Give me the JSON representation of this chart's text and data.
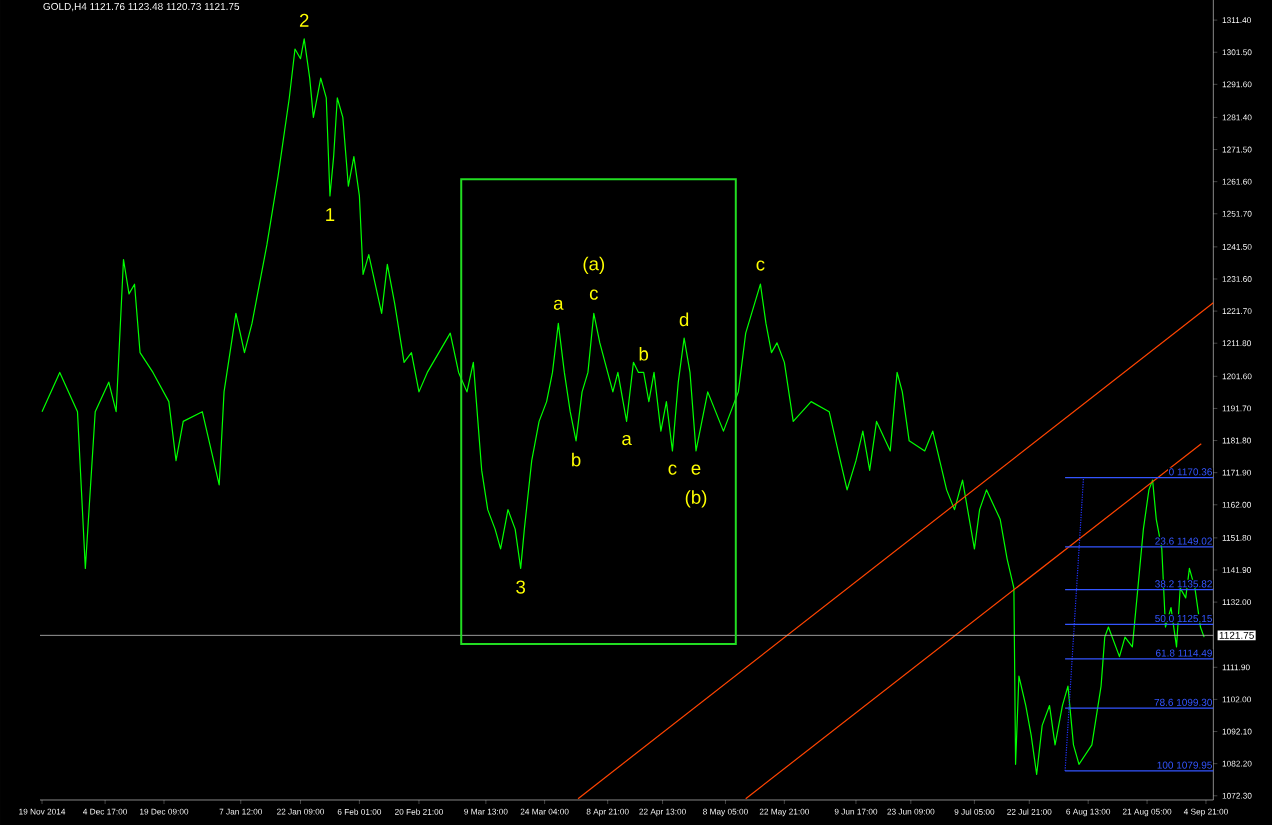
{
  "chart_data": {
    "type": "line",
    "title": "GOLD,H4  1121.76 1123.48 1120.73 1121.75",
    "xlim": [
      "2014-11-18T12:00",
      "2015-09-06T17:00"
    ],
    "ylim": [
      1071.0,
      1317.6
    ],
    "xticks": [
      {
        "value": "2014-11-19T00:00",
        "label": "19 Nov 2014"
      },
      {
        "value": "2014-12-04T17:00",
        "label": "4 Dec 17:00"
      },
      {
        "value": "2014-12-19T09:00",
        "label": "19 Dec 09:00"
      },
      {
        "value": "2015-01-07T12:00",
        "label": "7 Jan 12:00"
      },
      {
        "value": "2015-01-22T09:00",
        "label": "22 Jan 09:00"
      },
      {
        "value": "2015-02-06T01:00",
        "label": "6 Feb 01:00"
      },
      {
        "value": "2015-02-20T21:00",
        "label": "20 Feb 21:00"
      },
      {
        "value": "2015-03-09T13:00",
        "label": "9 Mar 13:00"
      },
      {
        "value": "2015-03-24T04:00",
        "label": "24 Mar 04:00"
      },
      {
        "value": "2015-04-08T21:00",
        "label": "8 Apr 21:00"
      },
      {
        "value": "2015-04-22T13:00",
        "label": "22 Apr 13:00"
      },
      {
        "value": "2015-05-08T05:00",
        "label": "8 May 05:00"
      },
      {
        "value": "2015-05-22T21:00",
        "label": "22 May 21:00"
      },
      {
        "value": "2015-06-09T17:00",
        "label": "9 Jun 17:00"
      },
      {
        "value": "2015-06-23T09:00",
        "label": "23 Jun 09:00"
      },
      {
        "value": "2015-07-09T05:00",
        "label": "9 Jul 05:00"
      },
      {
        "value": "2015-07-22T21:00",
        "label": "22 Jul 21:00"
      },
      {
        "value": "2015-08-06T13:00",
        "label": "6 Aug 13:00"
      },
      {
        "value": "2015-08-21T05:00",
        "label": "21 Aug 05:00"
      },
      {
        "value": "2015-09-04T21:00",
        "label": "4 Sep 21:00"
      }
    ],
    "yticks": [
      {
        "value": 1311.4,
        "label": "1311.40"
      },
      {
        "value": 1301.5,
        "label": "1301.50"
      },
      {
        "value": 1291.6,
        "label": "1291.60"
      },
      {
        "value": 1281.4,
        "label": "1281.40"
      },
      {
        "value": 1271.5,
        "label": "1271.50"
      },
      {
        "value": 1261.6,
        "label": "1261.60"
      },
      {
        "value": 1251.7,
        "label": "1251.70"
      },
      {
        "value": 1241.5,
        "label": "1241.50"
      },
      {
        "value": 1231.6,
        "label": "1231.60"
      },
      {
        "value": 1221.7,
        "label": "1221.70"
      },
      {
        "value": 1211.8,
        "label": "1211.80"
      },
      {
        "value": 1201.6,
        "label": "1201.60"
      },
      {
        "value": 1191.7,
        "label": "1191.70"
      },
      {
        "value": 1181.8,
        "label": "1181.80"
      },
      {
        "value": 1171.9,
        "label": "1171.90"
      },
      {
        "value": 1162.0,
        "label": "1162.00"
      },
      {
        "value": 1151.8,
        "label": "1151.80"
      },
      {
        "value": 1141.9,
        "label": "1141.90"
      },
      {
        "value": 1132.0,
        "label": "1132.00"
      },
      {
        "value": 1111.9,
        "label": "1111.90"
      },
      {
        "value": 1102.0,
        "label": "1102.00"
      },
      {
        "value": 1092.1,
        "label": "1092.10"
      },
      {
        "value": 1082.2,
        "label": "1082.20"
      },
      {
        "value": 1072.3,
        "label": "1072.30"
      }
    ],
    "ref_lines": [
      {
        "axis": "y",
        "value": 1121.75,
        "label": "1121.75",
        "color": "#c0c0c0"
      }
    ],
    "series": [
      {
        "color": "#00ff00",
        "x": [
          "2014-11-19T00:00",
          "2014-11-23T10:00",
          "2014-11-27T20:00",
          "2014-11-29T19:00",
          "2014-12-02T06:00",
          "2014-12-05T15:00",
          "2014-12-07T11:00",
          "2014-12-09T07:00",
          "2014-12-10T16:00",
          "2014-12-12T01:00",
          "2014-12-13T10:00",
          "2014-12-16T15:00",
          "2014-12-20T14:00",
          "2014-12-22T09:00",
          "2014-12-24T04:00",
          "2014-12-28T22:00",
          "2015-01-02T03:00",
          "2015-01-03T08:00",
          "2015-01-06T07:00",
          "2015-01-08T10:00",
          "2015-01-10T07:00",
          "2015-01-14T00:00",
          "2015-01-16T19:00",
          "2015-01-19T14:00",
          "2015-01-21T00:00",
          "2015-01-22T09:00",
          "2015-01-23T07:00",
          "2015-01-24T16:00",
          "2015-01-25T14:00",
          "2015-01-27T10:00",
          "2015-01-28T19:00",
          "2015-01-29T17:00",
          "2015-01-30T15:00",
          "2015-01-31T13:00",
          "2015-02-01T22:00",
          "2015-02-03T07:00",
          "2015-02-04T16:00",
          "2015-02-06T01:00",
          "2015-02-06T23:00",
          "2015-02-08T09:00",
          "2015-02-11T14:00",
          "2015-02-13T00:00",
          "2015-02-14T20:00",
          "2015-02-17T04:00",
          "2015-02-19T00:00",
          "2015-02-20T21:00",
          "2015-02-22T23:00",
          "2015-02-28T16:00",
          "2015-03-02T18:00",
          "2015-03-04T20:00",
          "2015-03-06T10:00",
          "2015-03-08T12:00",
          "2015-03-10T00:00",
          "2015-03-11T20:00",
          "2015-03-13T05:00",
          "2015-03-15T01:00",
          "2015-03-16T20:00",
          "2015-03-18T05:00",
          "2015-03-19T03:00",
          "2015-03-20T23:00",
          "2015-03-22T19:00",
          "2015-03-24T16:00",
          "2015-03-26T03:00",
          "2015-03-27T14:00",
          "2015-03-29T02:00",
          "2015-03-30T13:00",
          "2015-04-01T00:00",
          "2015-04-02T12:00",
          "2015-04-03T23:00",
          "2015-04-05T10:00",
          "2015-04-06T22:00",
          "2015-04-08T21:00",
          "2015-04-10T04:00",
          "2015-04-11T10:00",
          "2015-04-12T17:00",
          "2015-04-13T14:00",
          "2015-04-15T07:00",
          "2015-04-16T13:00",
          "2015-04-17T20:00",
          "2015-04-19T03:00",
          "2015-04-20T10:00",
          "2015-04-22T03:00",
          "2015-04-23T12:00",
          "2015-04-25T00:00",
          "2015-04-26T11:00",
          "2015-04-27T22:00",
          "2015-04-29T09:00",
          "2015-04-30T21:00",
          "2015-05-02T08:00",
          "2015-05-03T19:00",
          "2015-05-07T17:00",
          "2015-05-11T10:00",
          "2015-05-13T06:00",
          "2015-05-16T22:00",
          "2015-05-18T07:00",
          "2015-05-19T16:00",
          "2015-05-21T01:00",
          "2015-05-22T21:00",
          "2015-05-25T02:00",
          "2015-05-29T13:00",
          "2015-06-03T01:00",
          "2015-06-05T06:00",
          "2015-06-07T12:00",
          "2015-06-09T17:00",
          "2015-06-11T10:00",
          "2015-06-13T03:00",
          "2015-06-14T20:00",
          "2015-06-18T06:00",
          "2015-06-19T23:00",
          "2015-06-21T06:00",
          "2015-06-22T23:00",
          "2015-06-26T20:00",
          "2015-06-28T20:00",
          "2015-07-02T07:00",
          "2015-07-04T06:00",
          "2015-07-06T06:00",
          "2015-07-09T05:00",
          "2015-07-10T12:00",
          "2015-07-12T05:00",
          "2015-07-15T15:00",
          "2015-07-17T08:00",
          "2015-07-19T01:00",
          "2015-07-19T11:00",
          "2015-07-20T07:00",
          "2015-07-22T00:00",
          "2015-07-23T08:00",
          "2015-07-24T17:00",
          "2015-07-26T02:00",
          "2015-07-27T22:00",
          "2015-07-29T07:00",
          "2015-07-31T03:00",
          "2015-08-01T12:00",
          "2015-08-02T21:00",
          "2015-08-04T06:00",
          "2015-08-07T11:00",
          "2015-08-09T18:00",
          "2015-08-10T16:00",
          "2015-08-11T14:00",
          "2015-08-14T08:00",
          "2015-08-15T17:00",
          "2015-08-17T13:00",
          "2015-08-20T07:00",
          "2015-08-21T16:00",
          "2015-08-22T14:00",
          "2015-08-23T12:00",
          "2015-08-24T21:00",
          "2015-08-25T19:00",
          "2015-08-27T04:00",
          "2015-08-28T13:00",
          "2015-08-29T11:00",
          "2015-08-30T20:00",
          "2015-08-31T18:00",
          "2015-09-02T03:00",
          "2015-09-03T12:00",
          "2015-09-04T10:00"
        ],
        "values": [
          1190.7,
          1202.8,
          1190.7,
          1142.4,
          1190.7,
          1199.8,
          1190.7,
          1237.6,
          1227.0,
          1230.0,
          1208.9,
          1202.8,
          1193.8,
          1175.6,
          1187.7,
          1190.7,
          1168.1,
          1196.8,
          1221.0,
          1208.9,
          1217.9,
          1242.1,
          1263.3,
          1287.4,
          1302.5,
          1299.5,
          1305.6,
          1293.5,
          1281.4,
          1293.5,
          1287.4,
          1257.2,
          1269.3,
          1287.4,
          1281.4,
          1260.2,
          1269.3,
          1257.2,
          1233.0,
          1239.1,
          1221.0,
          1236.1,
          1224.0,
          1205.9,
          1208.9,
          1196.8,
          1202.8,
          1214.9,
          1202.8,
          1196.8,
          1205.9,
          1172.6,
          1160.5,
          1154.5,
          1148.4,
          1160.5,
          1154.5,
          1142.4,
          1154.5,
          1175.6,
          1187.7,
          1193.8,
          1202.8,
          1217.9,
          1202.8,
          1190.7,
          1181.7,
          1196.8,
          1202.8,
          1221.0,
          1211.9,
          1202.8,
          1196.8,
          1202.8,
          1193.8,
          1187.7,
          1205.9,
          1202.8,
          1202.8,
          1193.8,
          1202.8,
          1184.7,
          1193.8,
          1178.6,
          1199.8,
          1213.4,
          1202.8,
          1178.6,
          1187.7,
          1196.8,
          1184.7,
          1196.8,
          1214.9,
          1230.0,
          1217.9,
          1208.9,
          1211.9,
          1205.9,
          1187.7,
          1193.8,
          1190.7,
          1178.6,
          1166.6,
          1175.6,
          1184.7,
          1172.6,
          1187.7,
          1178.6,
          1202.8,
          1196.8,
          1181.7,
          1178.6,
          1184.7,
          1166.6,
          1160.5,
          1169.6,
          1148.4,
          1160.5,
          1166.6,
          1157.5,
          1145.4,
          1136.3,
          1082.0,
          1109.2,
          1100.1,
          1091.0,
          1078.9,
          1094.0,
          1100.1,
          1088.0,
          1100.1,
          1106.1,
          1088.0,
          1082.0,
          1088.0,
          1106.1,
          1121.2,
          1124.3,
          1115.2,
          1121.2,
          1118.2,
          1154.5,
          1166.6,
          1169.6,
          1157.5,
          1148.4,
          1124.3,
          1130.3,
          1118.2,
          1136.3,
          1133.3,
          1142.4,
          1136.3,
          1124.3,
          1121.2
        ]
      },
      {
        "color": "#ff4400",
        "x": [
          "2015-04-01T12:00",
          "2015-09-06T17:00"
        ],
        "values": [
          1071.4,
          1224.3
        ]
      },
      {
        "color": "#ff4400",
        "x": [
          "2015-05-13T06:00",
          "2015-09-03T17:00"
        ],
        "values": [
          1071.4,
          1180.8
        ]
      },
      {
        "color": "#2233ff",
        "line_style": "dotted",
        "x": [
          "2015-07-31T19:00",
          "2015-08-05T09:00"
        ],
        "values": [
          1079.95,
          1170.36
        ]
      },
      {
        "color": "#3355ff",
        "name": "0 1170.36",
        "x": [
          "2015-07-31T19:00",
          "2015-09-06T17:00"
        ],
        "values": [
          1170.36,
          1170.36
        ]
      },
      {
        "color": "#3355ff",
        "name": "23.6 1149.02",
        "x": [
          "2015-07-31T19:00",
          "2015-09-06T17:00"
        ],
        "values": [
          1149.02,
          1149.02
        ]
      },
      {
        "color": "#3355ff",
        "name": "38.2 1135.82",
        "x": [
          "2015-07-31T19:00",
          "2015-09-06T17:00"
        ],
        "values": [
          1135.82,
          1135.82
        ]
      },
      {
        "color": "#3355ff",
        "name": "50.0 1125.15",
        "x": [
          "2015-07-31T19:00",
          "2015-09-06T17:00"
        ],
        "values": [
          1125.15,
          1125.15
        ]
      },
      {
        "color": "#3355ff",
        "name": "61.8 1114.49",
        "x": [
          "2015-07-31T19:00",
          "2015-09-06T17:00"
        ],
        "values": [
          1114.49,
          1114.49
        ]
      },
      {
        "color": "#3355ff",
        "name": "78.6 1099.30",
        "x": [
          "2015-07-31T19:00",
          "2015-09-06T17:00"
        ],
        "values": [
          1099.3,
          1099.3
        ]
      },
      {
        "color": "#3355ff",
        "name": "100 1079.95",
        "x": [
          "2015-07-31T19:00",
          "2015-09-06T17:00"
        ],
        "values": [
          1079.95,
          1079.95
        ]
      }
    ],
    "annotations": [
      {
        "text": "2",
        "x": "2015-01-23T07:00",
        "y": 1305.6
      },
      {
        "text": "1",
        "x": "2015-01-29T17:00",
        "y": 1257.2
      },
      {
        "text": "3",
        "x": "2015-03-18T05:00",
        "y": 1142.4
      },
      {
        "text": "a",
        "x": "2015-03-27T14:00",
        "y": 1217.9
      },
      {
        "text": "c",
        "x": "2015-04-05T10:00",
        "y": 1221.0
      },
      {
        "text": "(a)",
        "x": "2015-04-05T10:00",
        "y": 1221.0
      },
      {
        "text": "b",
        "x": "2015-04-01T00:00",
        "y": 1181.7
      },
      {
        "text": "a",
        "x": "2015-04-13T14:00",
        "y": 1187.7
      },
      {
        "text": "b",
        "x": "2015-04-17T20:00",
        "y": 1202.8
      },
      {
        "text": "c",
        "x": "2015-04-25T00:00",
        "y": 1178.6
      },
      {
        "text": "d",
        "x": "2015-04-27T22:00",
        "y": 1213.4
      },
      {
        "text": "e",
        "x": "2015-04-30T21:00",
        "y": 1178.6
      },
      {
        "text": "(b)",
        "x": "2015-04-30T21:00",
        "y": 1178.6
      },
      {
        "text": "c",
        "x": "2015-05-16T22:00",
        "y": 1230.0
      }
    ]
  }
}
